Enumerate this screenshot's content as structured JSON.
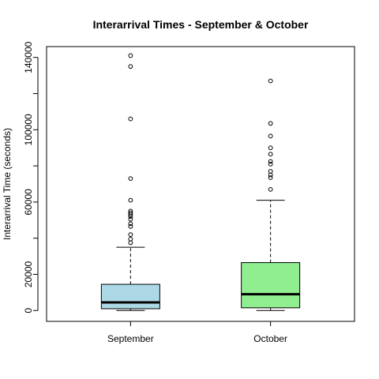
{
  "chart_data": {
    "type": "boxplot",
    "title": "Interarrival Times - September & October",
    "xlabel": "",
    "ylabel": "Interarrival Time (seconds)",
    "ylim": [
      -6000,
      146000
    ],
    "yticks": [
      0,
      20000,
      60000,
      100000,
      140000
    ],
    "grid": false,
    "categories": [
      "September",
      "October"
    ],
    "series": [
      {
        "category": "September",
        "color": "#add8e6",
        "min": 0,
        "q1": 1000,
        "median": 4500,
        "q3": 14500,
        "whisker_high": 35000,
        "outliers": [
          37500,
          39500,
          42000,
          46500,
          48000,
          50500,
          52000,
          53000,
          54000,
          55000,
          61000,
          73000,
          106000,
          135000,
          141000
        ]
      },
      {
        "category": "October",
        "color": "#90ee90",
        "min": 0,
        "q1": 1500,
        "median": 9000,
        "q3": 26500,
        "whisker_high": 61000,
        "outliers": [
          67000,
          73500,
          75000,
          77000,
          81000,
          82500,
          86500,
          90000,
          96500,
          103500,
          127000
        ]
      }
    ]
  }
}
